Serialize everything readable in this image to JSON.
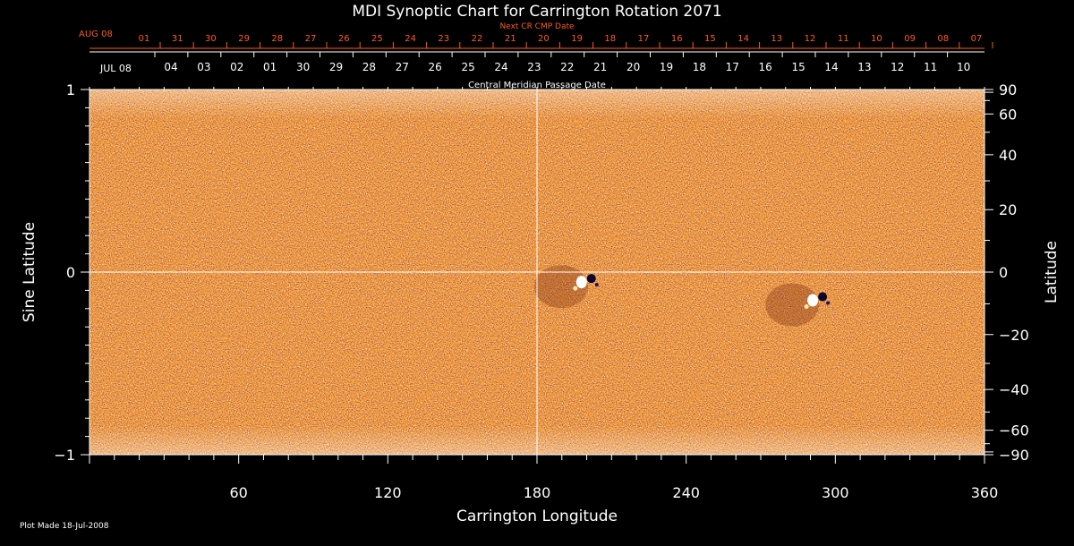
{
  "chart_data": {
    "type": "heatmap",
    "title": "MDI Synoptic Chart for Carrington Rotation 2071",
    "top_axis_label": "Next CR CMP Date",
    "top_axis_month": "AUG 08",
    "top_axis_dates": [
      "01",
      "31",
      "30",
      "29",
      "28",
      "27",
      "26",
      "25",
      "24",
      "23",
      "22",
      "21",
      "20",
      "19",
      "18",
      "17",
      "16",
      "15",
      "14",
      "13",
      "12",
      "11",
      "10",
      "09",
      "08",
      "07"
    ],
    "mid_axis_month": "JUL 08",
    "mid_axis_dates": [
      "04",
      "03",
      "02",
      "01",
      "30",
      "29",
      "28",
      "27",
      "26",
      "25",
      "24",
      "23",
      "22",
      "21",
      "20",
      "19",
      "18",
      "17",
      "16",
      "15",
      "14",
      "13",
      "12",
      "11",
      "10"
    ],
    "mid_axis_label": "Central Meridian Passage Date",
    "xlabel": "Carrington Longitude",
    "ylabel_left": "Sine Latitude",
    "ylabel_right": "Latitude",
    "xlim": [
      0,
      360
    ],
    "ylim": [
      -1,
      1
    ],
    "x_ticks": [
      60,
      120,
      180,
      240,
      300,
      360
    ],
    "y_ticks_left": [
      "1",
      "0",
      "−1"
    ],
    "y_ticks_left_values": [
      1,
      0,
      -1
    ],
    "y_ticks_right": [
      "90",
      "60",
      "40",
      "20",
      "0",
      "−20",
      "−40",
      "−60",
      "−90"
    ],
    "y_ticks_right_values": [
      90,
      60,
      40,
      20,
      0,
      -20,
      -40,
      -60,
      -90
    ],
    "active_regions": [
      {
        "longitude": 199,
        "sine_latitude": -0.04
      },
      {
        "longitude": 292,
        "sine_latitude": -0.14
      }
    ],
    "footer": "Plot Made 18-Jul-2008",
    "colors": {
      "background": "#000000",
      "positive": "#ffffff",
      "negative": "#1a1060",
      "quiet": "#e05010",
      "axis_accent": "#ff5a1e"
    }
  }
}
